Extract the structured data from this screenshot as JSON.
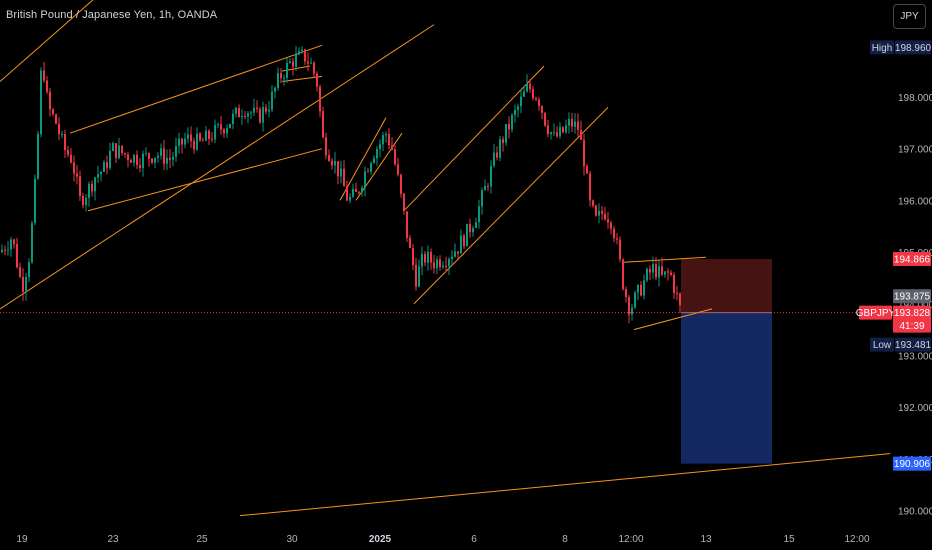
{
  "header": {
    "title": "British Pound / Japanese Yen, 1h, OANDA",
    "currency_button": "JPY"
  },
  "price_labels": {
    "high_tag": "High",
    "high_value": "198.960",
    "stop_value": "194.866",
    "prev_close_value": "193.875",
    "symbol_tag": "GBPJPY",
    "current_value": "193.828",
    "countdown": "41:39",
    "low_tag": "Low",
    "low_value": "193.481",
    "target_value": "190.906"
  },
  "colors": {
    "background": "#000000",
    "up_candle": "#089981",
    "down_candle": "#f23645",
    "trendline": "#f7931a",
    "stop_zone": "#4a1414",
    "target_zone": "#152a66",
    "current_price": "#f23645",
    "high_low_tag": "#131e43",
    "target_tag": "#2962ff"
  },
  "chart_data": {
    "type": "candlestick",
    "symbol": "GBPJPY",
    "timeframe": "1h",
    "ylim": [
      189.8,
      199.7
    ],
    "y_ticks": [
      190,
      191,
      192,
      193,
      194,
      195,
      196,
      197,
      198
    ],
    "y_tick_labels": [
      "190.000",
      "191.000",
      "192.000",
      "193.000",
      "194.000",
      "195.000",
      "196.000",
      "197.000",
      "198.000"
    ],
    "x_ticks": [
      "19",
      "23",
      "25",
      "30",
      "2025",
      "6",
      "8",
      "12:00",
      "13",
      "15",
      "12:00"
    ],
    "bold_x_tick": "2025",
    "price_path": [
      {
        "t": 0,
        "p": 195.0
      },
      {
        "t": 12,
        "p": 195.3
      },
      {
        "t": 22,
        "p": 194.3
      },
      {
        "t": 30,
        "p": 195.0
      },
      {
        "t": 36,
        "p": 196.5
      },
      {
        "t": 42,
        "p": 198.8
      },
      {
        "t": 48,
        "p": 197.8
      },
      {
        "t": 56,
        "p": 197.5
      },
      {
        "t": 64,
        "p": 197.0
      },
      {
        "t": 72,
        "p": 196.8
      },
      {
        "t": 80,
        "p": 196.0
      },
      {
        "t": 88,
        "p": 196.2
      },
      {
        "t": 96,
        "p": 196.5
      },
      {
        "t": 104,
        "p": 196.6
      },
      {
        "t": 112,
        "p": 197.0
      },
      {
        "t": 124,
        "p": 196.9
      },
      {
        "t": 140,
        "p": 196.8
      },
      {
        "t": 156,
        "p": 196.9
      },
      {
        "t": 170,
        "p": 196.8
      },
      {
        "t": 186,
        "p": 197.2
      },
      {
        "t": 200,
        "p": 197.1
      },
      {
        "t": 214,
        "p": 197.3
      },
      {
        "t": 228,
        "p": 197.5
      },
      {
        "t": 244,
        "p": 197.8
      },
      {
        "t": 258,
        "p": 197.6
      },
      {
        "t": 270,
        "p": 197.9
      },
      {
        "t": 280,
        "p": 198.4
      },
      {
        "t": 292,
        "p": 198.7
      },
      {
        "t": 304,
        "p": 198.8
      },
      {
        "t": 312,
        "p": 198.6
      },
      {
        "t": 318,
        "p": 198.2
      },
      {
        "t": 322,
        "p": 197.2
      },
      {
        "t": 330,
        "p": 196.9
      },
      {
        "t": 340,
        "p": 196.5
      },
      {
        "t": 348,
        "p": 196.0
      },
      {
        "t": 356,
        "p": 196.1
      },
      {
        "t": 364,
        "p": 196.5
      },
      {
        "t": 372,
        "p": 196.9
      },
      {
        "t": 380,
        "p": 197.1
      },
      {
        "t": 386,
        "p": 197.3
      },
      {
        "t": 392,
        "p": 197.0
      },
      {
        "t": 398,
        "p": 196.4
      },
      {
        "t": 404,
        "p": 195.7
      },
      {
        "t": 410,
        "p": 195.0
      },
      {
        "t": 416,
        "p": 194.5
      },
      {
        "t": 424,
        "p": 194.9
      },
      {
        "t": 434,
        "p": 194.8
      },
      {
        "t": 446,
        "p": 194.9
      },
      {
        "t": 458,
        "p": 195.1
      },
      {
        "t": 468,
        "p": 195.4
      },
      {
        "t": 478,
        "p": 195.8
      },
      {
        "t": 488,
        "p": 196.4
      },
      {
        "t": 498,
        "p": 197.0
      },
      {
        "t": 508,
        "p": 197.4
      },
      {
        "t": 518,
        "p": 197.8
      },
      {
        "t": 528,
        "p": 198.2
      },
      {
        "t": 538,
        "p": 198.0
      },
      {
        "t": 546,
        "p": 197.5
      },
      {
        "t": 554,
        "p": 197.2
      },
      {
        "t": 562,
        "p": 197.3
      },
      {
        "t": 570,
        "p": 197.5
      },
      {
        "t": 578,
        "p": 197.4
      },
      {
        "t": 584,
        "p": 196.8
      },
      {
        "t": 590,
        "p": 195.9
      },
      {
        "t": 596,
        "p": 195.6
      },
      {
        "t": 604,
        "p": 195.8
      },
      {
        "t": 612,
        "p": 195.6
      },
      {
        "t": 618,
        "p": 195.0
      },
      {
        "t": 624,
        "p": 194.3
      },
      {
        "t": 630,
        "p": 193.9
      },
      {
        "t": 638,
        "p": 194.2
      },
      {
        "t": 646,
        "p": 194.5
      },
      {
        "t": 654,
        "p": 194.7
      },
      {
        "t": 662,
        "p": 194.5
      },
      {
        "t": 670,
        "p": 194.6
      },
      {
        "t": 676,
        "p": 194.2
      },
      {
        "t": 681,
        "p": 193.83
      }
    ],
    "trendlines": [
      {
        "t1": 0,
        "p1": 198.3,
        "t2": 100,
        "p2": 200.0
      },
      {
        "t1": 70,
        "p1": 197.3,
        "t2": 322,
        "p2": 199.0
      },
      {
        "t1": 88,
        "p1": 195.8,
        "t2": 322,
        "p2": 197.0
      },
      {
        "t1": 0,
        "p1": 193.9,
        "t2": 434,
        "p2": 199.4
      },
      {
        "t1": 282,
        "p1": 198.5,
        "t2": 310,
        "p2": 198.6
      },
      {
        "t1": 282,
        "p1": 198.3,
        "t2": 322,
        "p2": 198.4
      },
      {
        "t1": 340,
        "p1": 196.0,
        "t2": 386,
        "p2": 197.6
      },
      {
        "t1": 356,
        "p1": 196.0,
        "t2": 402,
        "p2": 197.3
      },
      {
        "t1": 404,
        "p1": 195.8,
        "t2": 544,
        "p2": 198.6
      },
      {
        "t1": 414,
        "p1": 194.0,
        "t2": 608,
        "p2": 197.8
      },
      {
        "t1": 622,
        "p1": 194.8,
        "t2": 706,
        "p2": 194.9
      },
      {
        "t1": 634,
        "p1": 193.5,
        "t2": 712,
        "p2": 193.9
      },
      {
        "t1": 240,
        "p1": 189.9,
        "t2": 890,
        "p2": 191.1
      }
    ],
    "position": {
      "entry": 193.828,
      "stop": 194.866,
      "target": 190.906,
      "t_start": 681,
      "t_end": 772
    },
    "high": 198.96,
    "low": 193.481
  }
}
